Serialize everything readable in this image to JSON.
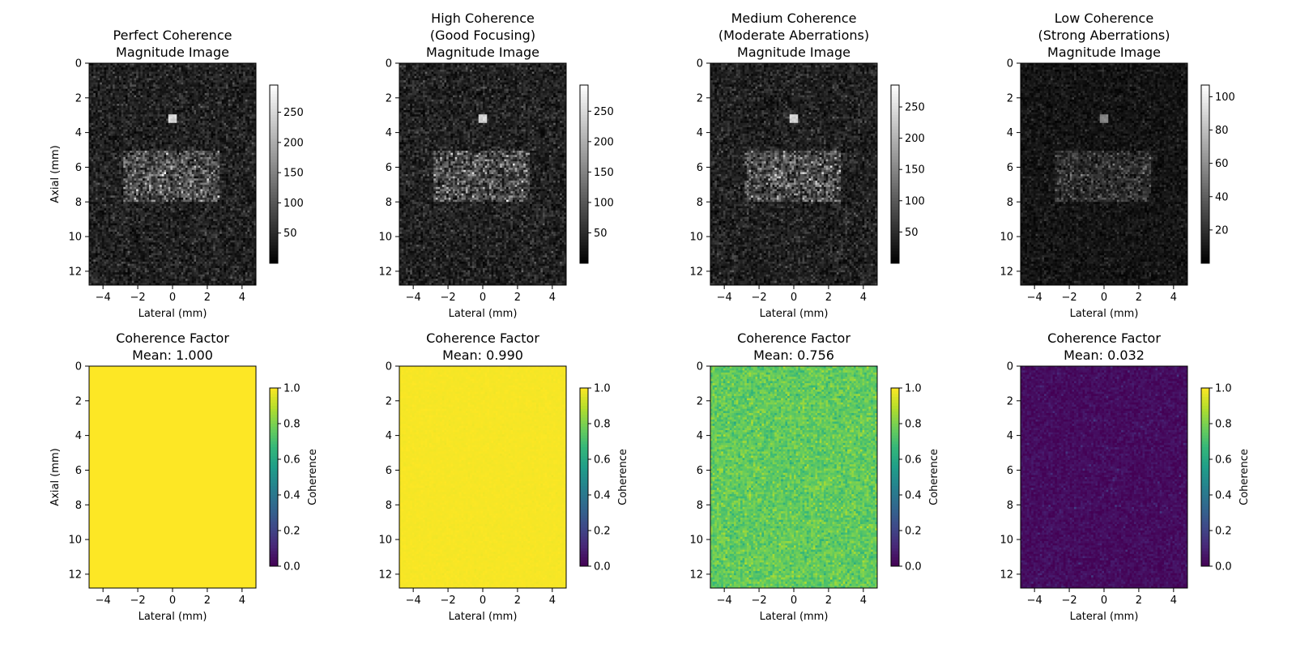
{
  "chart_data": [
    {
      "type": "heatmap",
      "row": 0,
      "col": 0,
      "title": [
        "Perfect Coherence",
        "Magnitude Image"
      ],
      "xlabel": "Lateral (mm)",
      "ylabel": "Axial (mm)",
      "xlim": [
        -4.8,
        4.8
      ],
      "ylim": [
        12.8,
        0
      ],
      "xticks": [
        -4,
        -2,
        0,
        2,
        4
      ],
      "yticks": [
        0,
        2,
        4,
        6,
        8,
        10,
        12
      ],
      "colormap": "gray",
      "clim": [
        0,
        295
      ],
      "colorbar_ticks": [
        50,
        100,
        150,
        200,
        250
      ],
      "colorbar_label": "",
      "background_level": 40,
      "target_level": 270,
      "rect_level": 95
    },
    {
      "type": "heatmap",
      "row": 0,
      "col": 1,
      "title": [
        "High Coherence",
        "(Good Focusing)",
        "Magnitude Image"
      ],
      "xlabel": "Lateral (mm)",
      "ylabel": "",
      "xlim": [
        -4.8,
        4.8
      ],
      "ylim": [
        12.8,
        0
      ],
      "xticks": [
        -4,
        -2,
        0,
        2,
        4
      ],
      "yticks": [
        0,
        2,
        4,
        6,
        8,
        10,
        12
      ],
      "colormap": "gray",
      "clim": [
        0,
        293
      ],
      "colorbar_ticks": [
        50,
        100,
        150,
        200,
        250
      ],
      "colorbar_label": "",
      "background_level": 40,
      "target_level": 268,
      "rect_level": 94
    },
    {
      "type": "heatmap",
      "row": 0,
      "col": 2,
      "title": [
        "Medium Coherence",
        "(Moderate Aberrations)",
        "Magnitude Image"
      ],
      "xlabel": "Lateral (mm)",
      "ylabel": "",
      "xlim": [
        -4.8,
        4.8
      ],
      "ylim": [
        12.8,
        0
      ],
      "xticks": [
        -4,
        -2,
        0,
        2,
        4
      ],
      "yticks": [
        0,
        2,
        4,
        6,
        8,
        10,
        12
      ],
      "colormap": "gray",
      "clim": [
        0,
        285
      ],
      "colorbar_ticks": [
        50,
        100,
        150,
        200,
        250
      ],
      "colorbar_label": "",
      "background_level": 38,
      "target_level": 255,
      "rect_level": 90
    },
    {
      "type": "heatmap",
      "row": 0,
      "col": 3,
      "title": [
        "Low Coherence",
        "(Strong Aberrations)",
        "Magnitude Image"
      ],
      "xlabel": "Lateral (mm)",
      "ylabel": "",
      "xlim": [
        -4.8,
        4.8
      ],
      "ylim": [
        12.8,
        0
      ],
      "xticks": [
        -4,
        -2,
        0,
        2,
        4
      ],
      "yticks": [
        0,
        2,
        4,
        6,
        8,
        10,
        12
      ],
      "colormap": "gray",
      "clim": [
        0,
        107
      ],
      "colorbar_ticks": [
        20,
        40,
        60,
        80,
        100
      ],
      "colorbar_label": "",
      "background_level": 9,
      "target_level": 60,
      "rect_level": 20
    },
    {
      "type": "heatmap",
      "row": 1,
      "col": 0,
      "title": [
        "Coherence Factor",
        "Mean: 1.000"
      ],
      "xlabel": "Lateral (mm)",
      "ylabel": "Axial (mm)",
      "xlim": [
        -4.8,
        4.8
      ],
      "ylim": [
        12.8,
        0
      ],
      "xticks": [
        -4,
        -2,
        0,
        2,
        4
      ],
      "yticks": [
        0,
        2,
        4,
        6,
        8,
        10,
        12
      ],
      "colormap": "viridis",
      "clim": [
        0,
        1
      ],
      "colorbar_ticks": [
        "0.0",
        "0.2",
        "0.4",
        "0.6",
        "0.8",
        "1.0"
      ],
      "colorbar_label": "Coherence",
      "mean": 1.0,
      "spread": 0.0
    },
    {
      "type": "heatmap",
      "row": 1,
      "col": 1,
      "title": [
        "Coherence Factor",
        "Mean: 0.990"
      ],
      "xlabel": "Lateral (mm)",
      "ylabel": "",
      "xlim": [
        -4.8,
        4.8
      ],
      "ylim": [
        12.8,
        0
      ],
      "xticks": [
        -4,
        -2,
        0,
        2,
        4
      ],
      "yticks": [
        0,
        2,
        4,
        6,
        8,
        10,
        12
      ],
      "colormap": "viridis",
      "clim": [
        0,
        1
      ],
      "colorbar_ticks": [
        "0.0",
        "0.2",
        "0.4",
        "0.6",
        "0.8",
        "1.0"
      ],
      "colorbar_label": "Coherence",
      "mean": 0.99,
      "spread": 0.004
    },
    {
      "type": "heatmap",
      "row": 1,
      "col": 2,
      "title": [
        "Coherence Factor",
        "Mean: 0.756"
      ],
      "xlabel": "Lateral (mm)",
      "ylabel": "",
      "xlim": [
        -4.8,
        4.8
      ],
      "ylim": [
        12.8,
        0
      ],
      "xticks": [
        -4,
        -2,
        0,
        2,
        4
      ],
      "yticks": [
        0,
        2,
        4,
        6,
        8,
        10,
        12
      ],
      "colormap": "viridis",
      "clim": [
        0,
        1
      ],
      "colorbar_ticks": [
        "0.0",
        "0.2",
        "0.4",
        "0.6",
        "0.8",
        "1.0"
      ],
      "colorbar_label": "Coherence",
      "mean": 0.756,
      "spread": 0.05
    },
    {
      "type": "heatmap",
      "row": 1,
      "col": 3,
      "title": [
        "Coherence Factor",
        "Mean: 0.032"
      ],
      "xlabel": "Lateral (mm)",
      "ylabel": "",
      "xlim": [
        -4.8,
        4.8
      ],
      "ylim": [
        12.8,
        0
      ],
      "xticks": [
        -4,
        -2,
        0,
        2,
        4
      ],
      "yticks": [
        0,
        2,
        4,
        6,
        8,
        10,
        12
      ],
      "colormap": "viridis",
      "clim": [
        0,
        1
      ],
      "colorbar_ticks": [
        "0.0",
        "0.2",
        "0.4",
        "0.6",
        "0.8",
        "1.0"
      ],
      "colorbar_label": "Coherence",
      "mean": 0.032,
      "spread": 0.025
    }
  ]
}
